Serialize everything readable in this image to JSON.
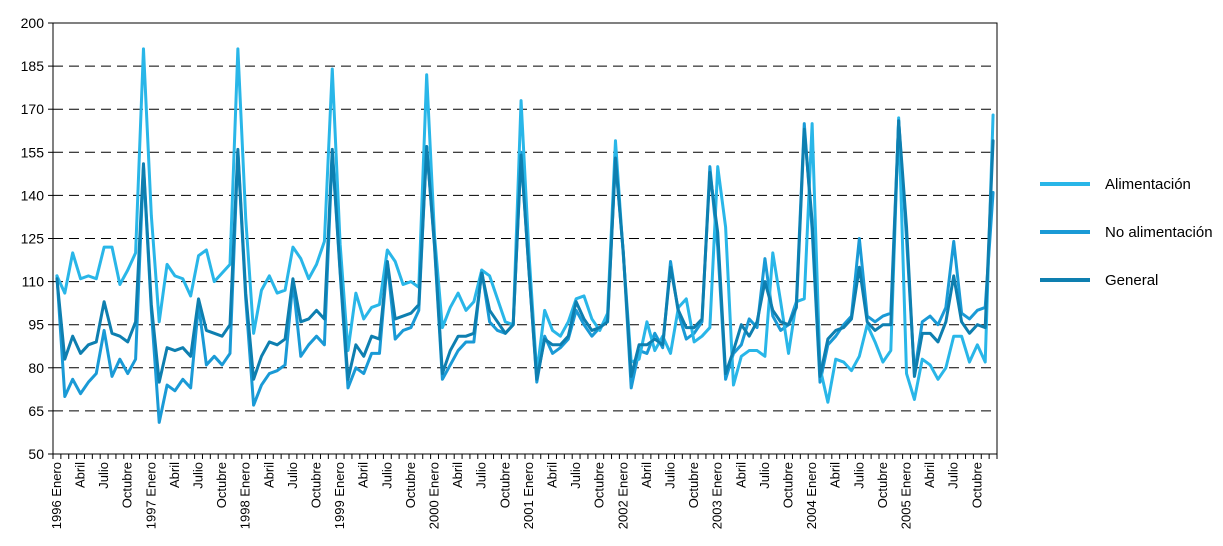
{
  "chart_data": {
    "type": "line",
    "title": "",
    "xlabel": "",
    "ylabel": "",
    "ylim": [
      50,
      200
    ],
    "yticks": [
      50,
      65,
      80,
      95,
      110,
      125,
      140,
      155,
      170,
      185,
      200
    ],
    "grid": "horizontal dashed",
    "legend_position": "right",
    "x_tick_labels": [
      "1996 Enero",
      "Abril",
      "Julio",
      "Octubre",
      "1997 Enero",
      "Abril",
      "Julio",
      "Octubre",
      "1998 Enero",
      "Abril",
      "Julio",
      "Octubre",
      "1999 Enero",
      "Abril",
      "Julio",
      "Octubre",
      "2000 Enero",
      "Abril",
      "Julio",
      "Octubre",
      "2001 Enero",
      "Abril",
      "Julio",
      "Octubre",
      "2002 Enero",
      "Abril",
      "Julio",
      "Octubre",
      "2003 Enero",
      "Abril",
      "Julio",
      "Octubre",
      "2004 Enero",
      "Abril",
      "Julio",
      "Octubre",
      "2005 Enero",
      "Abril",
      "Julio",
      "Octubre"
    ],
    "series": [
      {
        "name": "Alimentación",
        "color": "#29b6e8",
        "values": [
          112,
          106,
          120,
          111,
          112,
          111,
          122,
          122,
          109,
          114,
          120,
          191,
          133,
          96,
          116,
          112,
          111,
          105,
          119,
          121,
          110,
          113,
          116,
          191,
          132,
          92,
          107,
          112,
          106,
          107,
          122,
          118,
          111,
          116,
          124,
          184,
          123,
          86,
          106,
          97,
          101,
          102,
          121,
          117,
          109,
          110,
          108,
          182,
          126,
          94,
          101,
          106,
          100,
          103,
          114,
          112,
          104,
          96,
          95,
          173,
          120,
          78,
          100,
          93,
          91,
          96,
          104,
          105,
          97,
          93,
          99,
          159,
          119,
          82,
          83,
          96,
          86,
          91,
          85,
          101,
          104,
          89,
          91,
          94,
          150,
          129,
          74,
          84,
          86,
          86,
          84,
          120,
          103,
          85,
          103,
          104,
          165,
          80,
          68,
          83,
          82,
          79,
          84,
          95,
          89,
          82,
          86,
          167,
          78,
          69,
          83,
          81,
          76,
          80,
          91,
          91,
          82,
          88,
          82,
          168
        ]
      },
      {
        "name": "No alimentación",
        "color": "#1a9ad6",
        "values": [
          112,
          70,
          76,
          71,
          75,
          78,
          93,
          77,
          83,
          78,
          83,
          150,
          100,
          61,
          74,
          72,
          76,
          73,
          102,
          81,
          84,
          81,
          85,
          155,
          104,
          67,
          74,
          78,
          79,
          81,
          110,
          84,
          88,
          91,
          88,
          155,
          113,
          73,
          80,
          78,
          85,
          85,
          117,
          90,
          93,
          94,
          100,
          157,
          122,
          76,
          81,
          86,
          89,
          89,
          114,
          96,
          93,
          92,
          95,
          155,
          114,
          75,
          91,
          85,
          87,
          90,
          100,
          95,
          91,
          94,
          97,
          152,
          120,
          73,
          86,
          85,
          92,
          87,
          117,
          99,
          90,
          92,
          96,
          150,
          122,
          76,
          85,
          88,
          97,
          94,
          118,
          98,
          93,
          95,
          103,
          165,
          128,
          75,
          88,
          91,
          95,
          98,
          125,
          98,
          96,
          98,
          99,
          166,
          125,
          78,
          96,
          98,
          95,
          101,
          124,
          99,
          97,
          100,
          101,
          141
        ]
      },
      {
        "name": "General",
        "color": "#0e7fb0",
        "values": [
          111,
          83,
          91,
          85,
          88,
          89,
          103,
          92,
          91,
          89,
          96,
          151,
          102,
          75,
          87,
          86,
          87,
          84,
          104,
          93,
          92,
          91,
          95,
          156,
          106,
          76,
          84,
          89,
          88,
          90,
          111,
          96,
          97,
          100,
          97,
          156,
          114,
          76,
          88,
          84,
          91,
          90,
          117,
          97,
          98,
          99,
          102,
          157,
          123,
          78,
          86,
          91,
          91,
          92,
          113,
          100,
          96,
          92,
          95,
          154,
          114,
          76,
          90,
          88,
          88,
          91,
          103,
          97,
          93,
          94,
          96,
          153,
          120,
          77,
          88,
          88,
          90,
          88,
          115,
          100,
          94,
          94,
          97,
          148,
          127,
          78,
          86,
          95,
          91,
          96,
          110,
          100,
          96,
          95,
          101,
          163,
          131,
          77,
          90,
          93,
          94,
          97,
          115,
          96,
          93,
          95,
          95,
          166,
          129,
          77,
          92,
          92,
          89,
          96,
          112,
          96,
          92,
          95,
          94,
          159
        ]
      }
    ]
  }
}
